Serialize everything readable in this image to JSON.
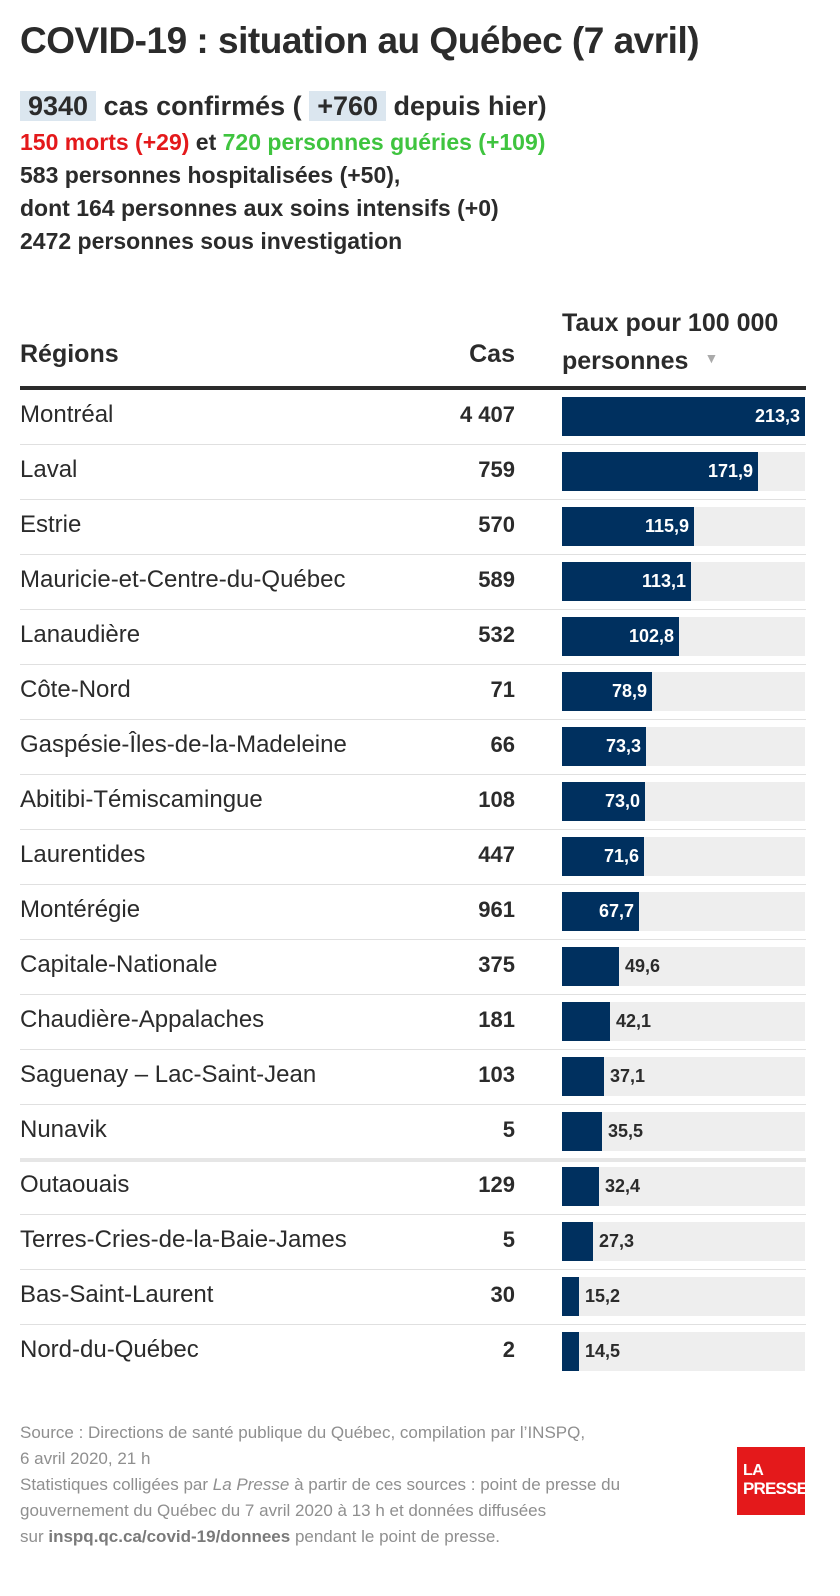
{
  "title": "COVID-19 : situation au Québec (7 avril)",
  "summary": {
    "cases_total": "9340",
    "cases_text": "cas confirmés (",
    "cases_delta": "+760",
    "cases_delta_text": "depuis hier)",
    "deaths": "150 morts (+29)",
    "connector": "et",
    "recovered": "720 personnes guéries (+109)",
    "hospitalized": "583 personnes hospitalisées (+50),",
    "intensive": "dont 164 personnes aux soins intensifs (+0)",
    "investigation": "2472 personnes sous investigation"
  },
  "table": {
    "col_regions": "Régions",
    "col_cases": "Cas",
    "col_rate_line1": "Taux pour 100 000",
    "col_rate_line2": "personnes",
    "sort_icon": "sort-descending-icon"
  },
  "chart_data": {
    "type": "bar",
    "title": "COVID-19 : situation au Québec (7 avril)",
    "xlabel": "Taux pour 100 000 personnes",
    "ylabel": "Régions",
    "xlim": [
      0,
      213.3
    ],
    "categories": [
      "Montréal",
      "Laval",
      "Estrie",
      "Mauricie-et-Centre-du-Québec",
      "Lanaudière",
      "Côte-Nord",
      "Gaspésie-Îles-de-la-Madeleine",
      "Abitibi-Témiscamingue",
      "Laurentides",
      "Montérégie",
      "Capitale-Nationale",
      "Chaudière-Appalaches",
      "Saguenay – Lac-Saint-Jean",
      "Nunavik",
      "Outaouais",
      "Terres-Cries-de-la-Baie-James",
      "Bas-Saint-Laurent",
      "Nord-du-Québec"
    ],
    "cases_labels": [
      "4 407",
      "759",
      "570",
      "589",
      "532",
      "71",
      "66",
      "108",
      "447",
      "961",
      "375",
      "181",
      "103",
      "5",
      "129",
      "5",
      "30",
      "2"
    ],
    "cases": [
      4407,
      759,
      570,
      589,
      532,
      71,
      66,
      108,
      447,
      961,
      375,
      181,
      103,
      5,
      129,
      5,
      30,
      2
    ],
    "rate_labels": [
      "213,3",
      "171,9",
      "115,9",
      "113,1",
      "102,8",
      "78,9",
      "73,3",
      "73,0",
      "71,6",
      "67,7",
      "49,6",
      "42,1",
      "37,1",
      "35,5",
      "32,4",
      "27,3",
      "15,2",
      "14,5"
    ],
    "values": [
      213.3,
      171.9,
      115.9,
      113.1,
      102.8,
      78.9,
      73.3,
      73.0,
      71.6,
      67.7,
      49.6,
      42.1,
      37.1,
      35.5,
      32.4,
      27.3,
      15.2,
      14.5
    ],
    "bar_color": "#00305f",
    "track_color": "#eeeeee",
    "grid": false,
    "legend": "none"
  },
  "source": {
    "line1": "Source : Directions de santé publique du Québec, compilation par l’INSPQ,",
    "line2": "6 avril 2020, 21 h",
    "line3a": "Statistiques colligées par",
    "line3b": "La Presse",
    "line3c": "à partir de ces sources : point de presse du",
    "line4": "gouvernement du Québec du 7 avril 2020 à 13 h et données diffusées",
    "line5a": "sur",
    "line5b": "inspq.qc.ca/covid-19/donnees",
    "line5c": "pendant le point de presse."
  },
  "logo": {
    "line1": "LA",
    "line2": "PRESSE",
    "color": "#e4191b"
  }
}
